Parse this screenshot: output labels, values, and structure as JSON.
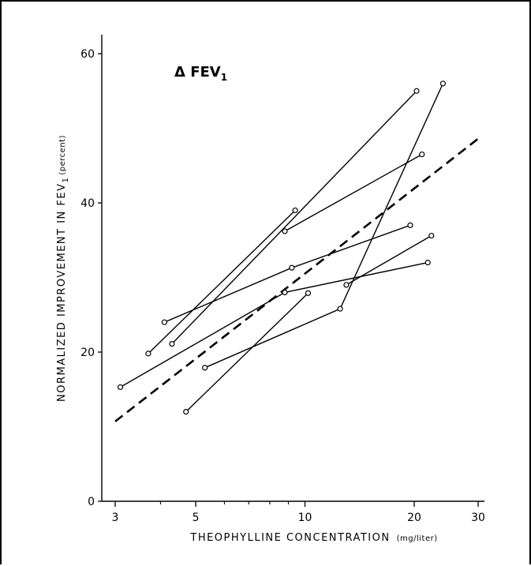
{
  "chart_data": {
    "type": "line",
    "title": "Δ FEV",
    "title_subscript": "1",
    "xlabel": "THEOPHYLLINE CONCENTRATION",
    "xlabel_unit": "(mg/liter)",
    "ylabel": "NORMALIZED IMPROVEMENT IN FEV",
    "ylabel_subscript": "1",
    "ylabel_unit": "(percent)",
    "x_scale": "log",
    "xlim": [
      3,
      30
    ],
    "ylim": [
      0,
      60
    ],
    "x_ticks_major": [
      3,
      5,
      10,
      20,
      30
    ],
    "x_tick_labels": [
      "3",
      "5",
      "10",
      "20",
      "30"
    ],
    "x_ticks_minor": [
      4,
      6,
      7,
      8,
      9
    ],
    "y_ticks": [
      0,
      20,
      40,
      60
    ],
    "y_tick_labels": [
      "0",
      "20",
      "40",
      "60"
    ],
    "grid": false,
    "series": [
      {
        "values": [
          [
            3.7,
            19.8
          ],
          [
            9.4,
            39.0
          ]
        ]
      },
      {
        "values": [
          [
            4.3,
            21.1
          ],
          [
            20.3,
            55.0
          ]
        ]
      },
      {
        "values": [
          [
            4.1,
            24.0
          ],
          [
            9.2,
            31.3
          ],
          [
            19.5,
            37.0
          ]
        ]
      },
      {
        "values": [
          [
            3.1,
            15.3
          ],
          [
            8.8,
            28.0
          ],
          [
            21.8,
            32.0
          ]
        ]
      },
      {
        "values": [
          [
            4.7,
            12.0
          ],
          [
            10.2,
            27.9
          ]
        ]
      },
      {
        "values": [
          [
            5.3,
            17.9
          ],
          [
            12.5,
            25.8
          ],
          [
            24.0,
            56.0
          ]
        ]
      },
      {
        "values": [
          [
            8.8,
            36.2
          ],
          [
            21.0,
            46.5
          ]
        ]
      },
      {
        "values": [
          [
            13.0,
            29.0
          ],
          [
            22.3,
            35.6
          ]
        ]
      }
    ],
    "regression_line": {
      "style": "dashed",
      "values": [
        [
          3,
          10.7
        ],
        [
          30,
          48.6
        ]
      ]
    }
  }
}
